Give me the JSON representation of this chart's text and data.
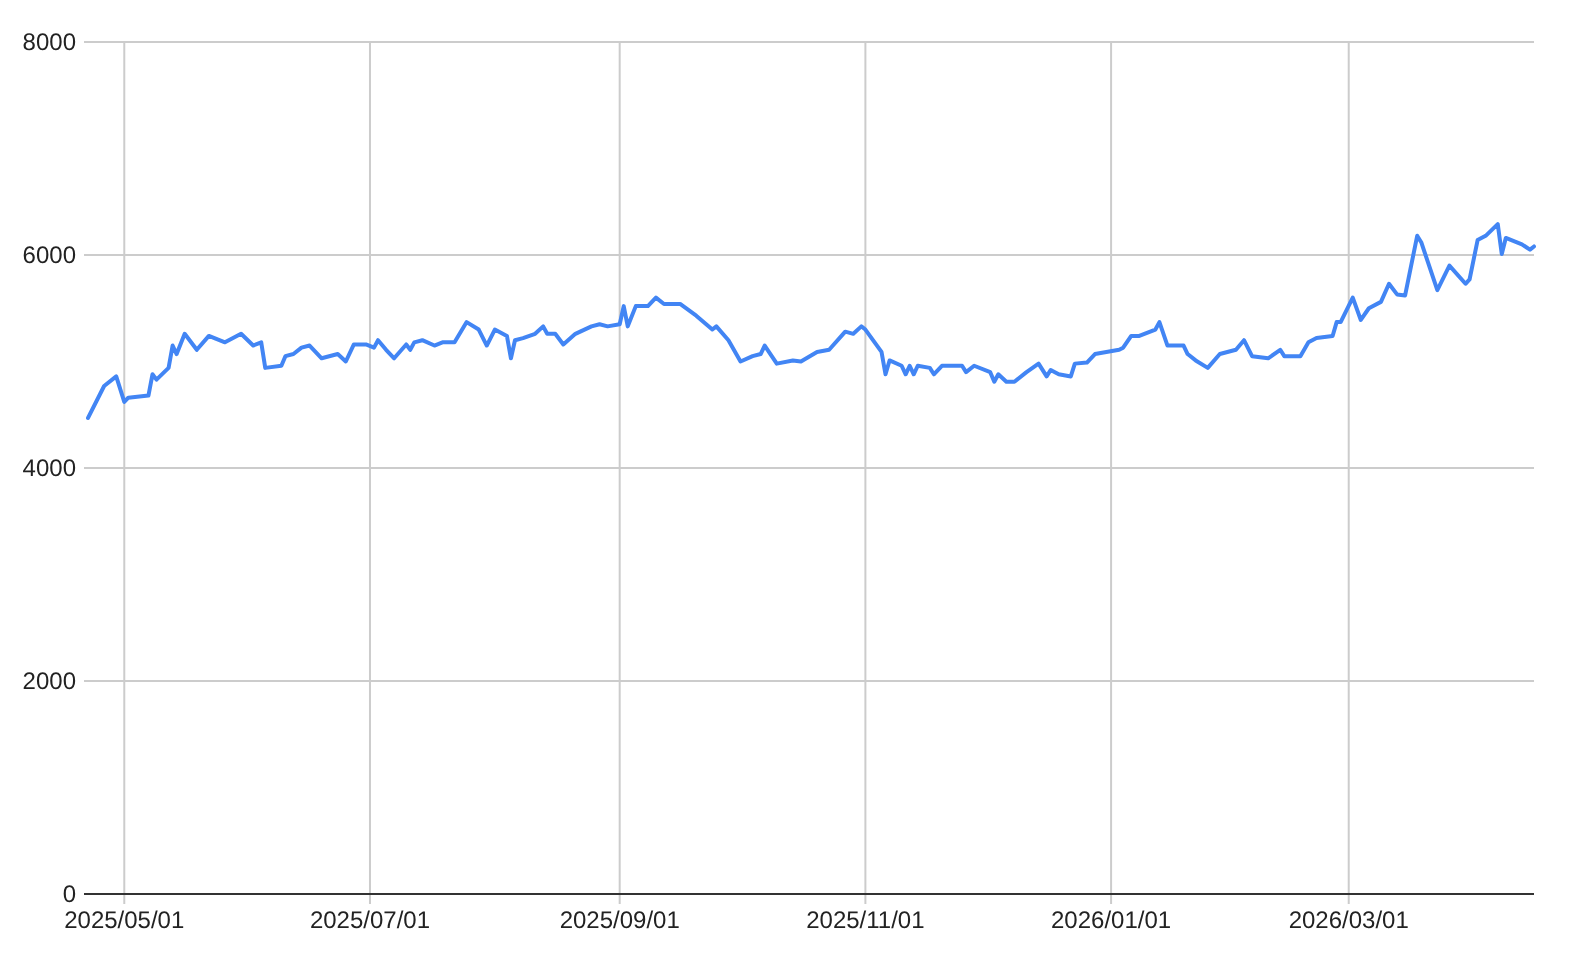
{
  "chart_data": {
    "type": "line",
    "xlim": [
      "2025-04-21",
      "2026-04-16"
    ],
    "ylim": [
      0,
      8000
    ],
    "yticks": [
      0,
      2000,
      4000,
      6000,
      8000
    ],
    "xticks": [
      {
        "value": "2025-05-01",
        "label": "2025/05/01"
      },
      {
        "value": "2025-07-01",
        "label": "2025/07/01"
      },
      {
        "value": "2025-09-01",
        "label": "2025/09/01"
      },
      {
        "value": "2025-11-01",
        "label": "2025/11/01"
      },
      {
        "value": "2026-01-01",
        "label": "2026/01/01"
      },
      {
        "value": "2026-03-01",
        "label": "2026/03/01"
      }
    ],
    "grid": true,
    "line_style": "solid",
    "series": [
      {
        "color": "#4285f4",
        "x": [
          "2025-04-22",
          "2025-04-26",
          "2025-04-29",
          "2025-05-01",
          "2025-05-02",
          "2025-05-07",
          "2025-05-08",
          "2025-05-09",
          "2025-05-12",
          "2025-05-13",
          "2025-05-14",
          "2025-05-16",
          "2025-05-19",
          "2025-05-22",
          "2025-05-26",
          "2025-05-30",
          "2025-06-02",
          "2025-06-04",
          "2025-06-05",
          "2025-06-09",
          "2025-06-10",
          "2025-06-12",
          "2025-06-14",
          "2025-06-16",
          "2025-06-19",
          "2025-06-23",
          "2025-06-25",
          "2025-06-27",
          "2025-06-30",
          "2025-07-02",
          "2025-07-03",
          "2025-07-05",
          "2025-07-07",
          "2025-07-10",
          "2025-07-11",
          "2025-07-12",
          "2025-07-14",
          "2025-07-17",
          "2025-07-19",
          "2025-07-22",
          "2025-07-25",
          "2025-07-28",
          "2025-07-30",
          "2025-08-01",
          "2025-08-04",
          "2025-08-05",
          "2025-08-06",
          "2025-08-08",
          "2025-08-11",
          "2025-08-13",
          "2025-08-14",
          "2025-08-16",
          "2025-08-18",
          "2025-08-21",
          "2025-08-25",
          "2025-08-27",
          "2025-08-29",
          "2025-09-01",
          "2025-09-02",
          "2025-09-03",
          "2025-09-05",
          "2025-09-08",
          "2025-09-10",
          "2025-09-12",
          "2025-09-16",
          "2025-09-20",
          "2025-09-24",
          "2025-09-25",
          "2025-09-28",
          "2025-10-01",
          "2025-10-04",
          "2025-10-06",
          "2025-10-07",
          "2025-10-10",
          "2025-10-14",
          "2025-10-16",
          "2025-10-20",
          "2025-10-23",
          "2025-10-27",
          "2025-10-29",
          "2025-10-31",
          "2025-11-01",
          "2025-11-05",
          "2025-11-06",
          "2025-11-07",
          "2025-11-10",
          "2025-11-11",
          "2025-11-12",
          "2025-11-13",
          "2025-11-14",
          "2025-11-17",
          "2025-11-18",
          "2025-11-20",
          "2025-11-25",
          "2025-11-26",
          "2025-11-28",
          "2025-12-02",
          "2025-12-03",
          "2025-12-04",
          "2025-12-06",
          "2025-12-08",
          "2025-12-11",
          "2025-12-14",
          "2025-12-16",
          "2025-12-17",
          "2025-12-19",
          "2025-12-22",
          "2025-12-23",
          "2025-12-26",
          "2025-12-28",
          "2026-01-03",
          "2026-01-04",
          "2026-01-06",
          "2026-01-08",
          "2026-01-12",
          "2026-01-13",
          "2026-01-15",
          "2026-01-19",
          "2026-01-20",
          "2026-01-22",
          "2026-01-25",
          "2026-01-28",
          "2026-02-01",
          "2026-02-03",
          "2026-02-05",
          "2026-02-09",
          "2026-02-12",
          "2026-02-13",
          "2026-02-17",
          "2026-02-19",
          "2026-02-21",
          "2026-02-25",
          "2026-02-26",
          "2026-02-27",
          "2026-03-02",
          "2026-03-04",
          "2026-03-06",
          "2026-03-09",
          "2026-03-11",
          "2026-03-13",
          "2026-03-15",
          "2026-03-18",
          "2026-03-19",
          "2026-03-23",
          "2026-03-26",
          "2026-03-30",
          "2026-03-31",
          "2026-04-02",
          "2026-04-04",
          "2026-04-07",
          "2026-04-08",
          "2026-04-09",
          "2026-04-13",
          "2026-04-15",
          "2026-04-16"
        ],
        "values": [
          4470,
          4770,
          4860,
          4620,
          4660,
          4680,
          4880,
          4830,
          4940,
          5150,
          5070,
          5260,
          5110,
          5240,
          5180,
          5260,
          5150,
          5180,
          4940,
          4960,
          5050,
          5070,
          5130,
          5150,
          5030,
          5070,
          5000,
          5160,
          5160,
          5130,
          5200,
          5110,
          5030,
          5160,
          5110,
          5180,
          5200,
          5150,
          5180,
          5180,
          5370,
          5300,
          5150,
          5300,
          5240,
          5030,
          5200,
          5220,
          5260,
          5330,
          5260,
          5260,
          5160,
          5260,
          5330,
          5350,
          5330,
          5350,
          5520,
          5330,
          5520,
          5520,
          5600,
          5540,
          5540,
          5430,
          5300,
          5330,
          5200,
          5000,
          5050,
          5070,
          5150,
          4980,
          5010,
          5000,
          5090,
          5110,
          5280,
          5260,
          5330,
          5300,
          5090,
          4880,
          5010,
          4960,
          4880,
          4960,
          4880,
          4960,
          4940,
          4880,
          4960,
          4960,
          4900,
          4960,
          4900,
          4810,
          4880,
          4810,
          4810,
          4900,
          4980,
          4860,
          4920,
          4880,
          4860,
          4980,
          4990,
          5070,
          5110,
          5130,
          5240,
          5240,
          5300,
          5370,
          5150,
          5150,
          5070,
          5010,
          4940,
          5070,
          5110,
          5200,
          5050,
          5030,
          5110,
          5050,
          5050,
          5180,
          5220,
          5240,
          5370,
          5370,
          5600,
          5390,
          5500,
          5560,
          5730,
          5630,
          5620,
          6180,
          6120,
          5670,
          5900,
          5730,
          5770,
          6140,
          6180,
          6290,
          6010,
          6160,
          6100,
          6050,
          6080
        ]
      }
    ]
  }
}
